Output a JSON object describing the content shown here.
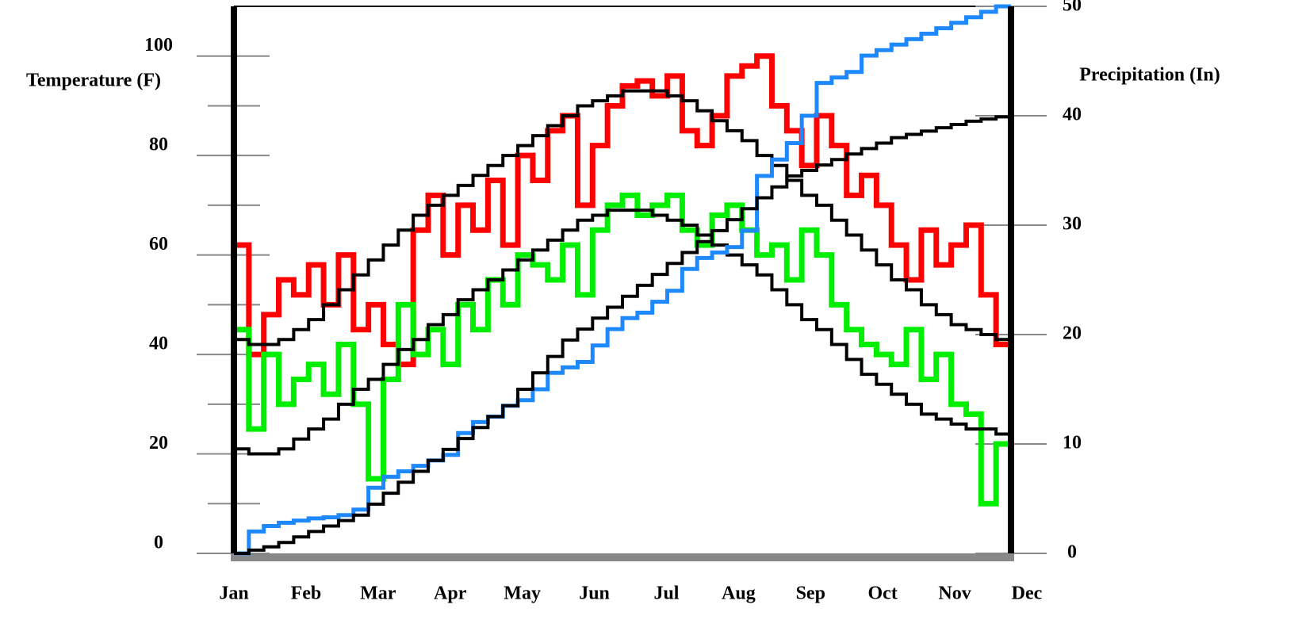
{
  "chart_data": {
    "type": "line",
    "ylabel": "Temperature (F)",
    "y2label": "Precipitation (In)",
    "categories": [
      "Jan",
      "Feb",
      "Mar",
      "Apr",
      "May",
      "Jun",
      "Jul",
      "Aug",
      "Sep",
      "Oct",
      "Nov",
      "Dec"
    ],
    "x": [
      0,
      7,
      14,
      21,
      28,
      35,
      42,
      49,
      56,
      63,
      70,
      77,
      84,
      91,
      98,
      105,
      112,
      119,
      126,
      133,
      140,
      147,
      154,
      161,
      168,
      175,
      182,
      189,
      196,
      203,
      210,
      217,
      224,
      231,
      238,
      245,
      252,
      259,
      266,
      273,
      280,
      287,
      294,
      301,
      308,
      315,
      322,
      329,
      336,
      343,
      350,
      357,
      364
    ],
    "xlim": [
      0,
      364
    ],
    "ylim": [
      0,
      110
    ],
    "yticks": [
      0,
      20,
      40,
      60,
      80,
      100
    ],
    "yminorticks": [
      10,
      30,
      50,
      70,
      90
    ],
    "y2lim": [
      0,
      50
    ],
    "y2ticks": [
      0,
      10,
      20,
      30,
      40,
      50
    ],
    "series": [
      {
        "color": "#ff0000",
        "values": [
          62,
          40,
          48,
          55,
          52,
          58,
          50,
          60,
          45,
          50,
          42,
          38,
          65,
          72,
          60,
          70,
          65,
          75,
          62,
          80,
          75,
          85,
          88,
          70,
          82,
          90,
          94,
          95,
          92,
          96,
          85,
          82,
          88,
          96,
          98,
          100,
          90,
          85,
          78,
          88,
          82,
          72,
          76,
          70,
          62,
          55,
          65,
          58,
          62,
          66,
          52,
          42,
          45
        ]
      },
      {
        "color": "#00ee00",
        "values": [
          45,
          25,
          40,
          30,
          35,
          38,
          32,
          42,
          30,
          15,
          35,
          50,
          40,
          45,
          38,
          50,
          45,
          55,
          50,
          60,
          58,
          55,
          62,
          52,
          65,
          70,
          72,
          68,
          70,
          72,
          65,
          62,
          68,
          70,
          65,
          60,
          62,
          55,
          65,
          60,
          50,
          45,
          42,
          40,
          38,
          45,
          35,
          40,
          30,
          28,
          10,
          22,
          18
        ]
      },
      {
        "color": "#000000",
        "values": [
          43,
          42,
          42,
          43,
          45,
          47,
          50,
          53,
          56,
          59,
          62,
          65,
          68,
          70,
          72,
          74,
          76,
          78,
          80,
          82,
          84,
          86,
          88,
          90,
          91,
          92,
          93,
          93,
          93,
          92,
          91,
          89,
          87,
          85,
          83,
          80,
          78,
          75,
          72,
          70,
          67,
          64,
          61,
          58,
          55,
          53,
          50,
          48,
          46,
          45,
          44,
          43,
          43
        ]
      },
      {
        "color": "#000000",
        "values": [
          21,
          20,
          20,
          21,
          23,
          25,
          27,
          30,
          33,
          35,
          38,
          41,
          43,
          46,
          48,
          51,
          53,
          55,
          57,
          59,
          61,
          63,
          65,
          67,
          68,
          69,
          69,
          69,
          68,
          67,
          66,
          64,
          62,
          60,
          58,
          56,
          53,
          50,
          47,
          45,
          42,
          39,
          36,
          34,
          32,
          30,
          28,
          27,
          26,
          25,
          25,
          24,
          24
        ]
      },
      {
        "color": "#1e88ff",
        "axis": "y2",
        "values": [
          0,
          2,
          2.5,
          2.8,
          3,
          3.2,
          3.3,
          3.5,
          4,
          6,
          7,
          7.5,
          8,
          8.5,
          9,
          11,
          12,
          12.5,
          13.5,
          14,
          15,
          16.5,
          17,
          17.5,
          19,
          20.5,
          21.5,
          22,
          23,
          24,
          26,
          27,
          27.5,
          28,
          29.5,
          34.5,
          36,
          37.5,
          40,
          43,
          43.5,
          44,
          45.5,
          46,
          46.5,
          47,
          47.5,
          48,
          48.5,
          49,
          49.5,
          50,
          50
        ]
      },
      {
        "color": "#000000",
        "axis": "y2",
        "values": [
          0,
          0.3,
          0.6,
          1,
          1.5,
          2,
          2.5,
          3,
          3.5,
          4.5,
          5.5,
          6.5,
          7.5,
          8.5,
          9.5,
          10.5,
          11.5,
          12.5,
          13.5,
          15,
          16.5,
          18,
          19.5,
          20.5,
          21.5,
          22.5,
          23.5,
          24.5,
          25.5,
          26.5,
          27.5,
          28.5,
          29.5,
          30.5,
          31.5,
          32.5,
          33.5,
          34.5,
          35,
          35.5,
          36,
          36.5,
          37,
          37.5,
          38,
          38.3,
          38.6,
          38.9,
          39.2,
          39.5,
          39.7,
          39.9,
          40
        ]
      }
    ]
  }
}
